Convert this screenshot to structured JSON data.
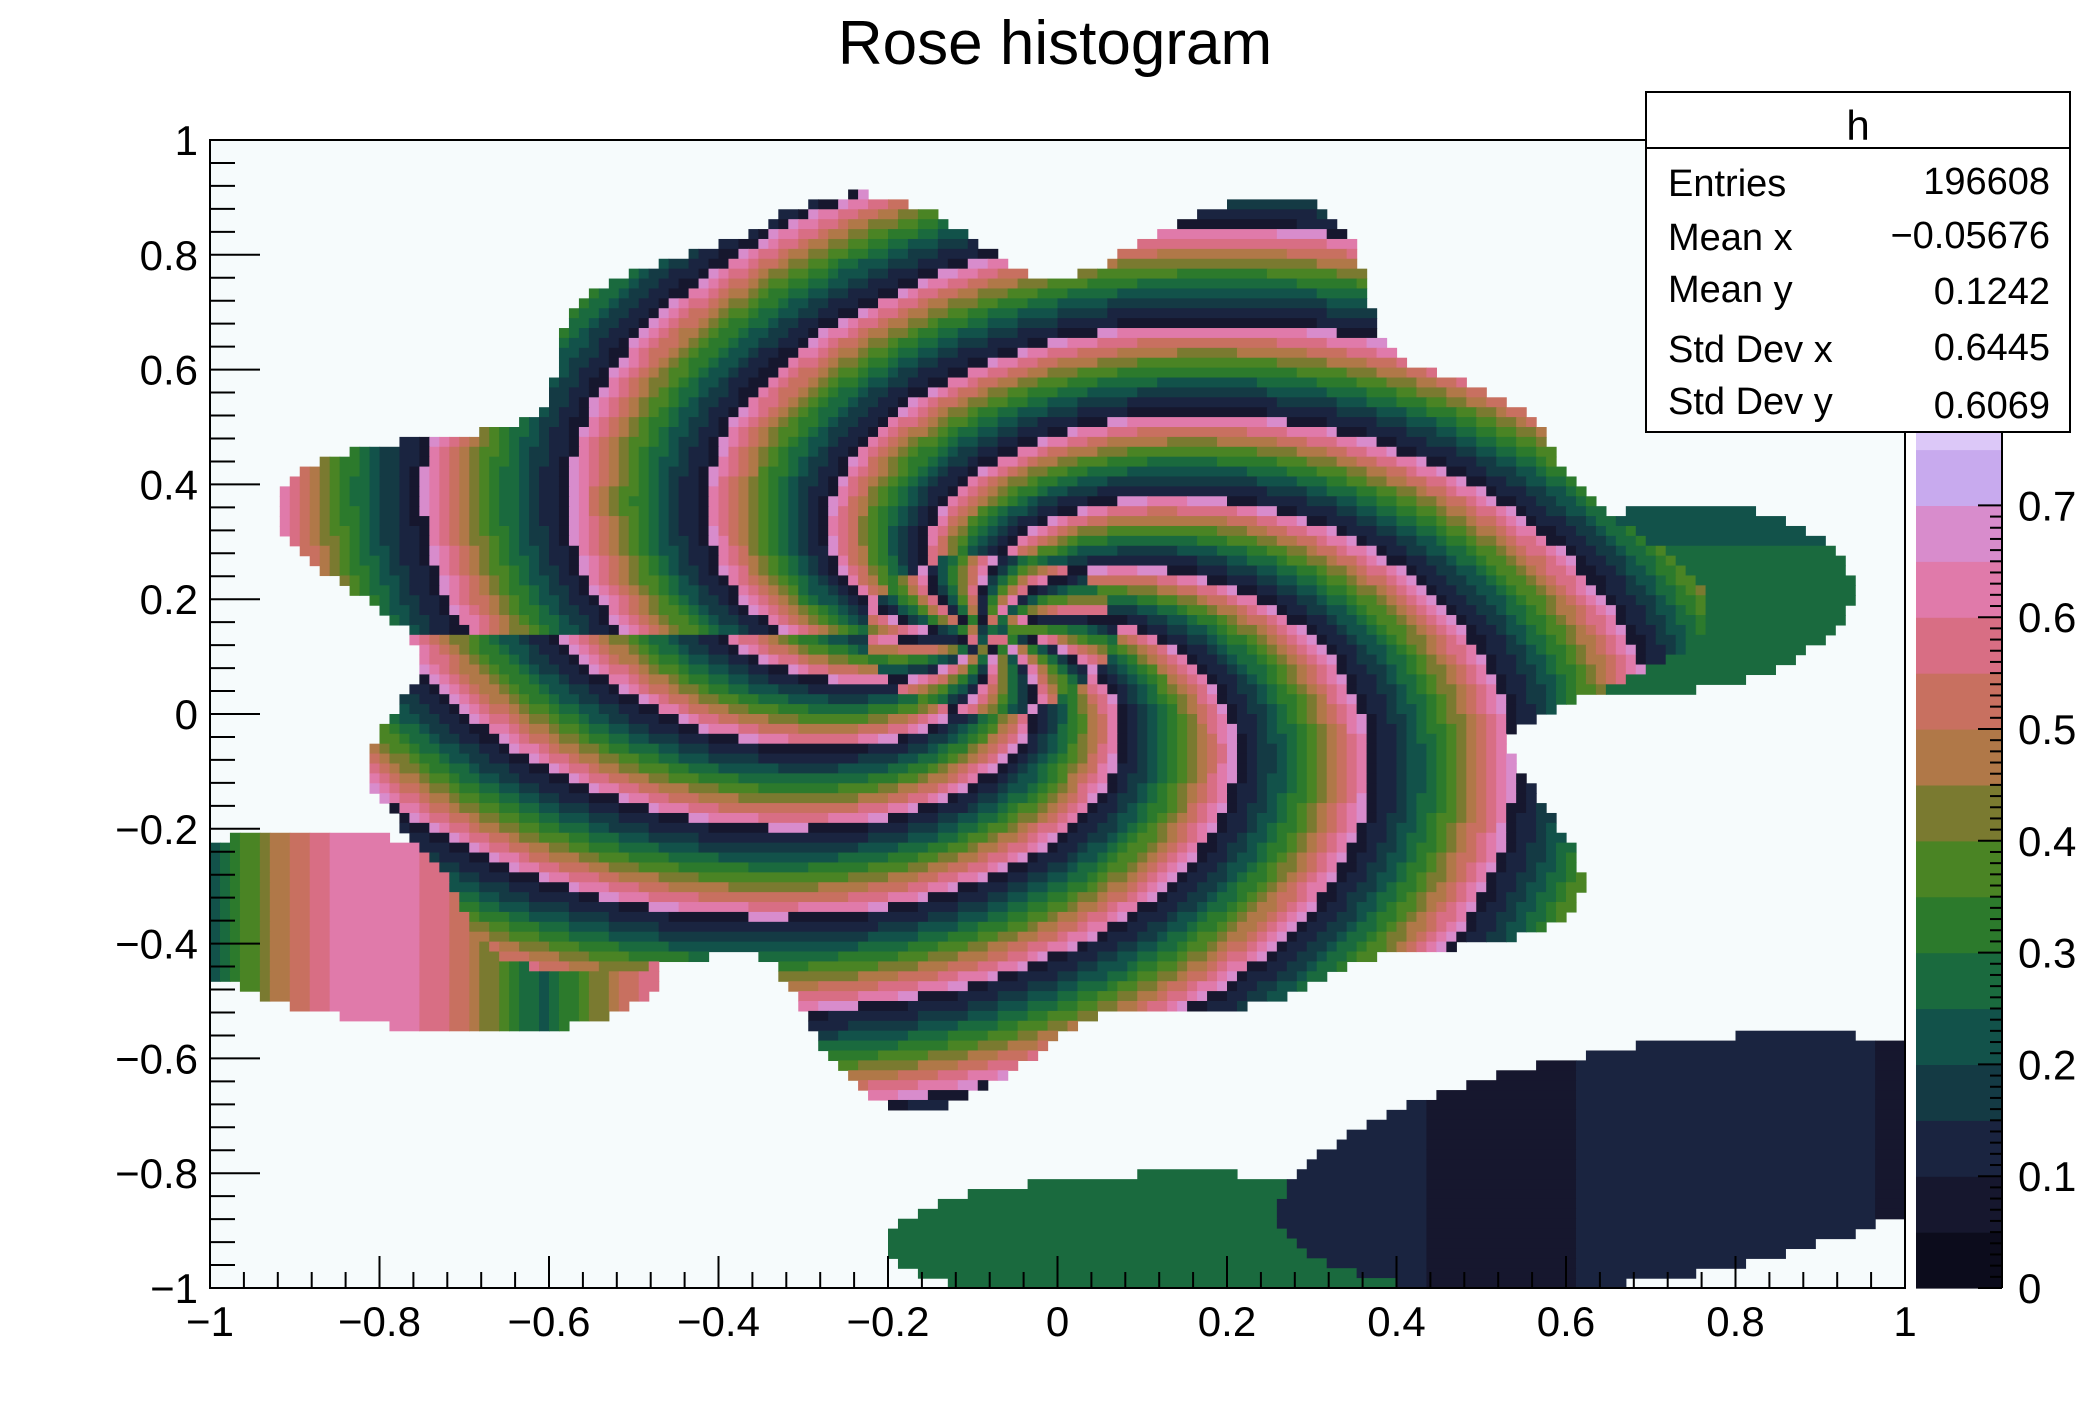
{
  "chart_data": {
    "type": "heatmap",
    "title": "Rose histogram",
    "xlabel": "",
    "ylabel": "",
    "xlim": [
      -1,
      1
    ],
    "ylim": [
      -1,
      1
    ],
    "zlim": [
      0,
      1
    ],
    "grid": false,
    "xticks": [
      -1,
      -0.8,
      -0.6,
      -0.4,
      -0.2,
      0,
      0.2,
      0.4,
      0.6,
      0.8,
      1
    ],
    "xtick_labels": [
      "−1",
      "−0.8",
      "−0.6",
      "−0.4",
      "−0.2",
      "0",
      "0.2",
      "0.4",
      "0.6",
      "0.8",
      "1"
    ],
    "yticks": [
      -1,
      -0.8,
      -0.6,
      -0.4,
      -0.2,
      0,
      0.2,
      0.4,
      0.6,
      0.8,
      1
    ],
    "ytick_labels": [
      "−1",
      "−0.8",
      "−0.6",
      "−0.4",
      "−0.2",
      "0",
      "0.2",
      "0.4",
      "0.6",
      "0.8",
      "1"
    ],
    "zticks": [
      0,
      0.1,
      0.2,
      0.3,
      0.4,
      0.5,
      0.6,
      0.7
    ],
    "ztick_labels": [
      "0",
      "0.1",
      "0.2",
      "0.3",
      "0.4",
      "0.5",
      "0.6",
      "0.7"
    ],
    "palette": [
      "#0c0c1c",
      "#16172e",
      "#1a2440",
      "#143a44",
      "#12524a",
      "#1a6a3e",
      "#2c7a2c",
      "#4a8424",
      "#7a7a30",
      "#b07848",
      "#c87060",
      "#d86e84",
      "#e07aaa",
      "#d88ccc",
      "#c8aaee",
      "#dcc8f8",
      "#eef2fb",
      "#f6fafc"
    ],
    "stats": {
      "name": "h",
      "rows": [
        {
          "label": "Entries",
          "value": "196608"
        },
        {
          "label": "Mean x",
          "value": "−0.05676"
        },
        {
          "label": "Mean y",
          "value": "0.1242"
        },
        {
          "label": "Std Dev x",
          "value": "0.6445"
        },
        {
          "label": "Std Dev y",
          "value": "0.6069"
        }
      ]
    },
    "colors": {
      "background": "#f6fbfc",
      "axis": "#000000"
    }
  }
}
